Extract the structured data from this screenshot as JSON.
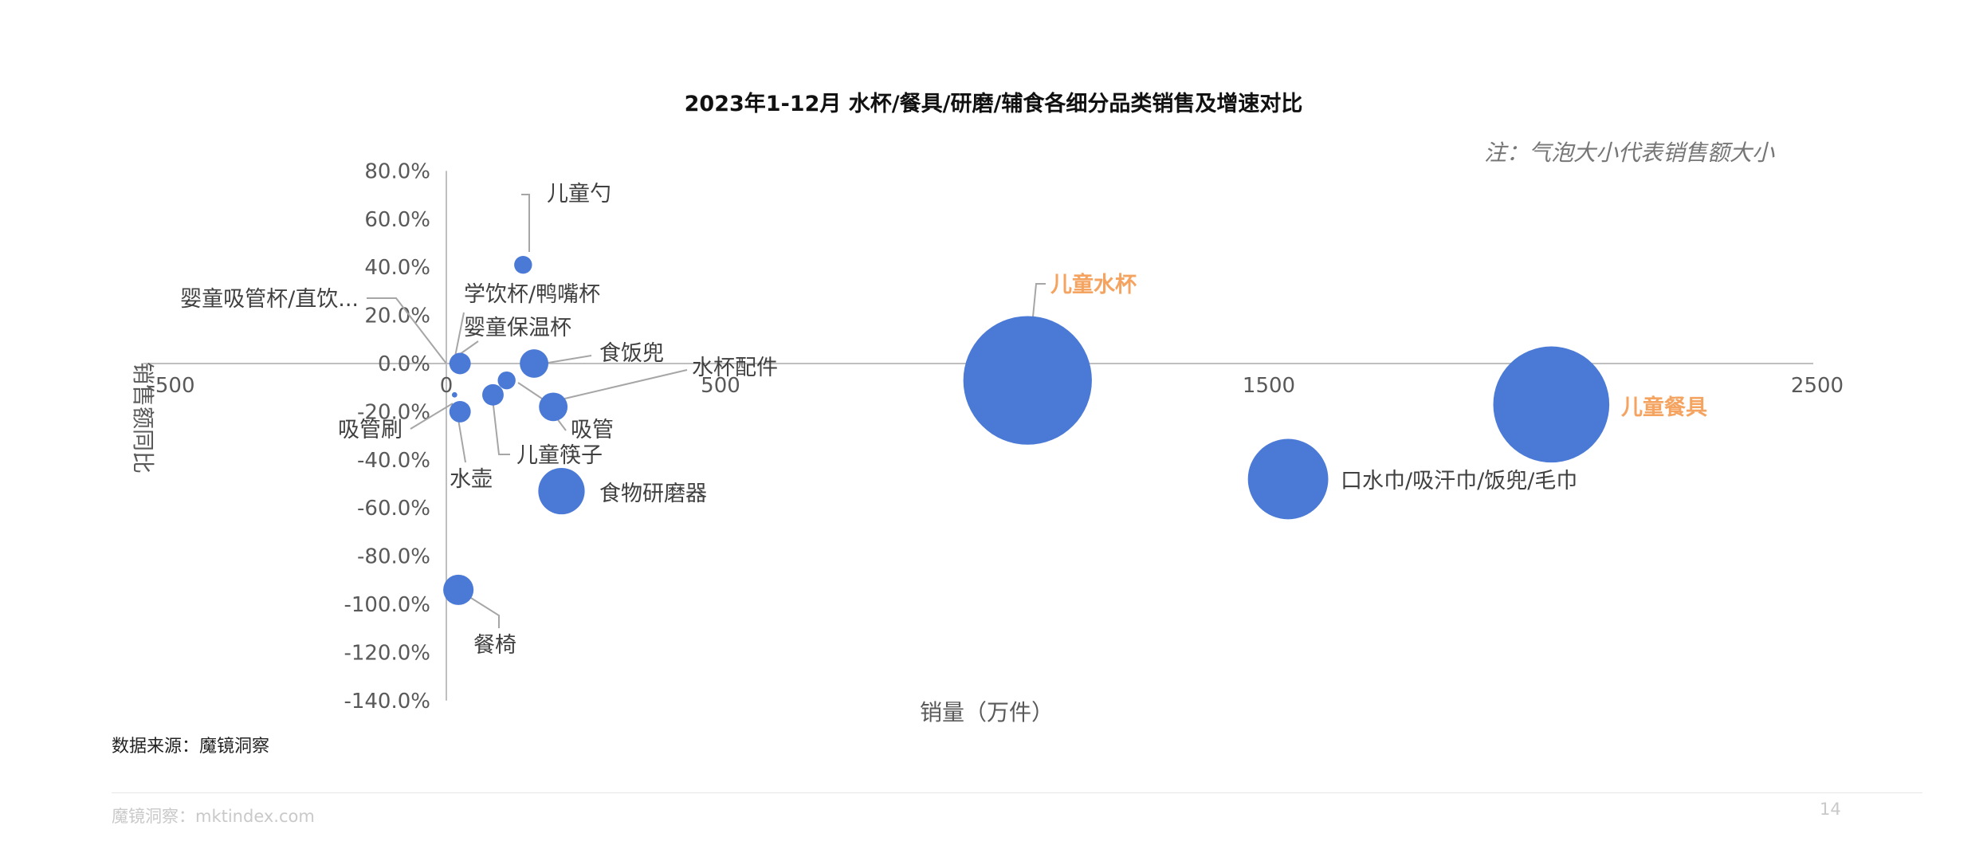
{
  "title": "2023年1-12月 水杯/餐具/研磨/辅食各细分品类销售及增速对比",
  "note": "注：气泡大小代表销售额大小",
  "source": "数据来源：魔镜洞察",
  "footer": "魔镜洞察：mktindex.com",
  "page_number": "14",
  "colors": {
    "bubble": "#4a79d6",
    "highlight_label": "#f4a460",
    "axis": "#bfbfbf"
  },
  "chart_data": {
    "type": "scatter",
    "title": "2023年1-12月 水杯/餐具/研磨/辅食各细分品类销售及增速对比",
    "xlabel": "销量（万件）",
    "ylabel": "销售额同比",
    "xlim": [
      -500,
      2500
    ],
    "ylim": [
      -140,
      80
    ],
    "x_ticks": [
      -500,
      0,
      500,
      1000,
      1500,
      2000,
      2500
    ],
    "y_ticks": [
      80,
      60,
      40,
      20,
      0,
      -20,
      -40,
      -60,
      -80,
      -100,
      -120,
      -140
    ],
    "x_tick_labels": [
      "-500",
      "0",
      "500",
      "1000",
      "1500",
      "2000",
      "2500"
    ],
    "y_tick_labels": [
      "80.0%",
      "60.0%",
      "40.0%",
      "20.0%",
      "0.0%",
      "-20.0%",
      "-40.0%",
      "-60.0%",
      "-80.0%",
      "-100.0%",
      "-120.0%",
      "-140.0%"
    ],
    "grid": false,
    "points": [
      {
        "name": "儿童勺",
        "x": 140,
        "y": 41,
        "size": 10,
        "highlight": false
      },
      {
        "name": "婴童吸管杯/直饮...",
        "x": 10,
        "y": 0,
        "size": 3,
        "highlight": false
      },
      {
        "name": "学饮杯/鸭嘴杯",
        "x": 25,
        "y": 0,
        "size": 12,
        "highlight": false
      },
      {
        "name": "婴童保温杯",
        "x": 30,
        "y": 0,
        "size": 6,
        "highlight": false
      },
      {
        "name": "食饭兜",
        "x": 160,
        "y": 0,
        "size": 16,
        "highlight": false
      },
      {
        "name": "水杯配件",
        "x": 110,
        "y": -7,
        "size": 10,
        "highlight": false
      },
      {
        "name": "吸管",
        "x": 195,
        "y": -18,
        "size": 16,
        "highlight": false
      },
      {
        "name": "吸管刷",
        "x": 15,
        "y": -13,
        "size": 3,
        "highlight": false
      },
      {
        "name": "儿童筷子",
        "x": 85,
        "y": -13,
        "size": 12,
        "highlight": false
      },
      {
        "name": "水壶",
        "x": 25,
        "y": -20,
        "size": 12,
        "highlight": false
      },
      {
        "name": "食物研磨器",
        "x": 210,
        "y": -53,
        "size": 26,
        "highlight": false
      },
      {
        "name": "餐椅",
        "x": 22,
        "y": -94,
        "size": 17,
        "highlight": false
      },
      {
        "name": "儿童水杯",
        "x": 1060,
        "y": -7,
        "size": 72,
        "highlight": true
      },
      {
        "name": "口水巾/吸汗巾/饭兜/毛巾",
        "x": 1535,
        "y": -48,
        "size": 45,
        "highlight": false
      },
      {
        "name": "儿童餐具",
        "x": 2015,
        "y": -17,
        "size": 65,
        "highlight": true
      }
    ]
  }
}
